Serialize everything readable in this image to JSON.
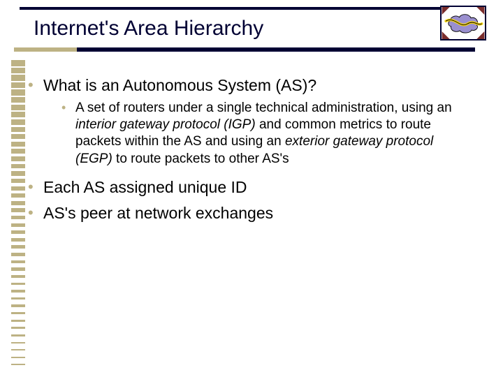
{
  "title": "Internet's Area Hierarchy",
  "bullets": {
    "b1": "What is an Autonomous System (AS)?",
    "b1_1_pre": "A set of routers under a single technical administration, using an ",
    "b1_1_igp": "interior gateway protocol (IGP)",
    "b1_1_mid": " and common metrics to route packets within the AS and using an ",
    "b1_1_egp": "exterior gateway protocol (EGP)",
    "b1_1_post": " to route packets to other AS's",
    "b2": "Each AS assigned unique ID",
    "b3": "AS's peer at network exchanges"
  },
  "colors": {
    "accent_dark": "#000033",
    "accent_tan": "#bdb284",
    "cloud": "#9a8fcf",
    "wave": "#f4d415",
    "logo_corner": "#7a2d2d"
  },
  "stripes": {
    "count": 42,
    "area_top": 0,
    "area_height": 446,
    "min_h": 2,
    "max_h": 9
  }
}
